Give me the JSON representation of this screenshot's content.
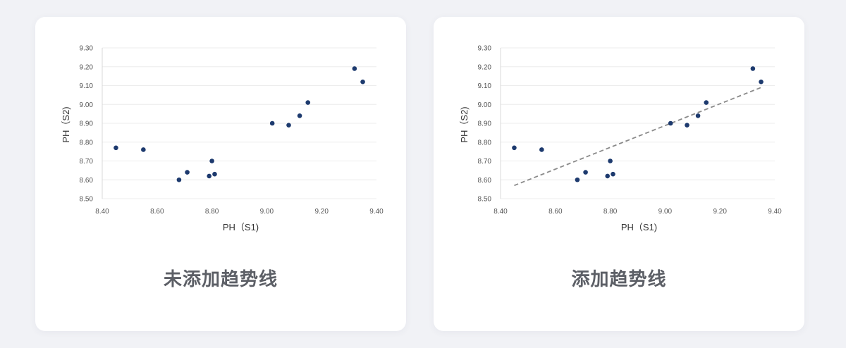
{
  "colors": {
    "point": "#1d3a6e",
    "trend": "#8a8a8a",
    "grid": "#ececec",
    "caption": "#5c5f66"
  },
  "panels": [
    {
      "caption": "未添加趋势线"
    },
    {
      "caption": "添加趋势线"
    }
  ],
  "chart_data": [
    {
      "type": "scatter",
      "title": "",
      "xlabel": "PH（S1)",
      "ylabel": "PH（S2)",
      "xlim": [
        8.4,
        9.4
      ],
      "ylim": [
        8.5,
        9.3
      ],
      "xticks": [
        "8.40",
        "8.60",
        "8.80",
        "9.00",
        "9.20",
        "9.40"
      ],
      "yticks": [
        "8.50",
        "8.60",
        "8.70",
        "8.80",
        "8.90",
        "9.00",
        "9.10",
        "9.20",
        "9.30"
      ],
      "grid": true,
      "trendline": false,
      "series": [
        {
          "x": [
            8.45,
            8.55,
            8.68,
            8.71,
            8.79,
            8.8,
            8.81,
            9.02,
            9.08,
            9.12,
            9.15,
            9.32,
            9.35
          ],
          "y": [
            8.77,
            8.76,
            8.6,
            8.64,
            8.62,
            8.7,
            8.63,
            8.9,
            8.89,
            8.94,
            9.01,
            9.19,
            9.12
          ]
        }
      ]
    },
    {
      "type": "scatter",
      "title": "",
      "xlabel": "PH（S1)",
      "ylabel": "PH（S2)",
      "xlim": [
        8.4,
        9.4
      ],
      "ylim": [
        8.5,
        9.3
      ],
      "xticks": [
        "8.40",
        "8.60",
        "8.80",
        "9.00",
        "9.20",
        "9.40"
      ],
      "yticks": [
        "8.50",
        "8.60",
        "8.70",
        "8.80",
        "8.90",
        "9.00",
        "9.10",
        "9.20",
        "9.30"
      ],
      "grid": true,
      "trendline": true,
      "trendline_endpoints": {
        "x": [
          8.45,
          9.35
        ],
        "y": [
          8.57,
          9.09
        ]
      },
      "series": [
        {
          "x": [
            8.45,
            8.55,
            8.68,
            8.71,
            8.79,
            8.8,
            8.81,
            9.02,
            9.08,
            9.12,
            9.15,
            9.32,
            9.35
          ],
          "y": [
            8.77,
            8.76,
            8.6,
            8.64,
            8.62,
            8.7,
            8.63,
            8.9,
            8.89,
            8.94,
            9.01,
            9.19,
            9.12
          ]
        }
      ]
    }
  ]
}
